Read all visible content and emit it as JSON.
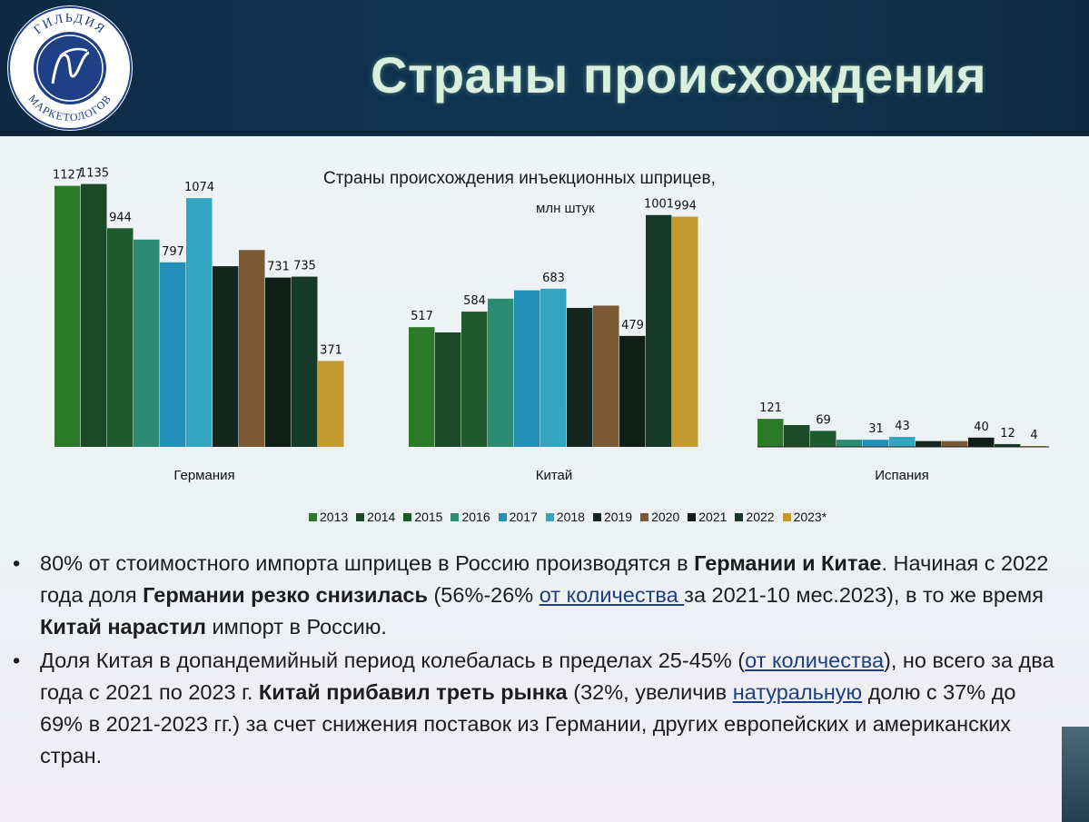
{
  "slide": {
    "title": "Страны происхождения",
    "logo": {
      "top_text": "ГИЛЬДИЯ",
      "bottom_text": "МАРКЕТОЛОГОВ",
      "monogram": "ГМ"
    }
  },
  "colors": {
    "header_bg": "#123552",
    "title_text": "#d9f0df",
    "series": [
      "#2b7a2a",
      "#1c4a28",
      "#1e5a2c",
      "#2b8c72",
      "#2290b8",
      "#32a6c0",
      "#13271e",
      "#7a5a34",
      "#0f1f18",
      "#153a2a",
      "#c49a30"
    ]
  },
  "chart_data": {
    "type": "bar",
    "title": "Страны происхождения инъекционных шприцев,",
    "unit": "млн штук",
    "categories": [
      "Германия",
      "Китай",
      "Испания"
    ],
    "series": [
      {
        "name": "2013",
        "values": [
          1127,
          517,
          121
        ]
      },
      {
        "name": "2014",
        "values": [
          1135,
          494,
          94
        ]
      },
      {
        "name": "2015",
        "values": [
          944,
          584,
          69
        ]
      },
      {
        "name": "2016",
        "values": [
          895,
          640,
          31
        ]
      },
      {
        "name": "2017",
        "values": [
          797,
          676,
          31
        ]
      },
      {
        "name": "2018",
        "values": [
          1074,
          683,
          43
        ]
      },
      {
        "name": "2019",
        "values": [
          780,
          600,
          25
        ]
      },
      {
        "name": "2020",
        "values": [
          850,
          610,
          25
        ]
      },
      {
        "name": "2021",
        "values": [
          731,
          479,
          40
        ]
      },
      {
        "name": "2022",
        "values": [
          735,
          1001,
          12
        ]
      },
      {
        "name": "2023*",
        "values": [
          371,
          994,
          4
        ]
      }
    ],
    "labels": [
      [
        "1127",
        "517",
        "121"
      ],
      [
        "1135",
        "",
        ""
      ],
      [
        "944",
        "584",
        "69"
      ],
      [
        "",
        "",
        ""
      ],
      [
        "797",
        "",
        "31"
      ],
      [
        "1074",
        "683",
        "43"
      ],
      [
        "",
        "",
        ""
      ],
      [
        "",
        "",
        ""
      ],
      [
        "731",
        "479",
        "40"
      ],
      [
        "735",
        "1001",
        "12"
      ],
      [
        "371",
        "994",
        "4"
      ]
    ],
    "ylim": [
      0,
      1200
    ],
    "grid": false,
    "legend_position": "bottom"
  },
  "bullets": {
    "b1": {
      "p1": "80% от стоимостного импорта шприцев в Россию производятся в ",
      "b1": "Германии и Китае",
      "p2": ". Начиная с 2022 года доля ",
      "b2": "Германии резко снизилась",
      "p3": " (56%-26% ",
      "link": "от количества ",
      "p4": "за 2021-10 мес.2023), в то же время ",
      "b3": "Китай нарастил",
      "p5": " импорт в Россию."
    },
    "b2": {
      "p1": "Доля Китая в допандемийный период колебалась в пределах 25-45% (",
      "link1": "от количества",
      "p2": "), но всего за два года с 2021 по 2023 г. ",
      "b1": "Китай прибавил треть рынка",
      "p3": " (32%, увеличив ",
      "link2": "натуральную",
      "p4": " долю с 37% до 69% в 2021-2023 гг.) за счет снижения поставок из Германии, других европейских и американских стран."
    }
  }
}
